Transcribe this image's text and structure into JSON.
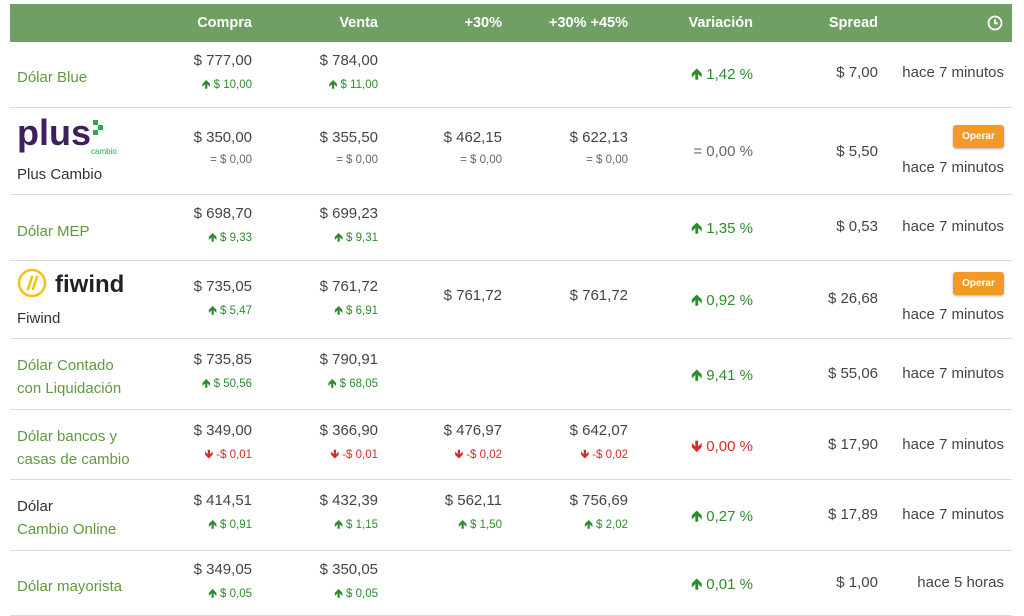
{
  "header": {
    "compra": "Compra",
    "venta": "Venta",
    "p30": "+30%",
    "p3045": "+30% +45%",
    "variacion": "Variación",
    "spread": "Spread",
    "clock_icon": "clock-icon"
  },
  "colors": {
    "header_bg": "#6f9f63",
    "up": "#2e8b2e",
    "down": "#d62b2b",
    "button": "#f39a26",
    "name_green": "#5f9a3c"
  },
  "rows": [
    {
      "name1": "Dólar Blue",
      "compra": "$ 777,00",
      "compra_d": "$ 10,00",
      "venta": "$ 784,00",
      "venta_d": "$ 11,00",
      "variacion": "1,42 %",
      "spread": "$ 7,00",
      "time": "hace 7 minutos"
    },
    {
      "logo_text": "plus",
      "logo_sub": "cambio",
      "name1": "Plus Cambio",
      "compra": "$ 350,00",
      "compra_d": "$ 0,00",
      "venta": "$ 355,50",
      "venta_d": "$ 0,00",
      "p30": "$ 462,15",
      "p30_d": "$ 0,00",
      "p3045": "$ 622,13",
      "p3045_d": "$ 0,00",
      "variacion": "0,00 %",
      "spread": "$ 5,50",
      "button": "Operar",
      "time": "hace 7 minutos"
    },
    {
      "name1": "Dólar MEP",
      "compra": "$ 698,70",
      "compra_d": "$ 9,33",
      "venta": "$ 699,23",
      "venta_d": "$ 9,31",
      "variacion": "1,35 %",
      "spread": "$ 0,53",
      "time": "hace 7 minutos"
    },
    {
      "logo_text": "fiwind",
      "name1": "Fiwind",
      "compra": "$ 735,05",
      "compra_d": "$ 5,47",
      "venta": "$ 761,72",
      "venta_d": "$ 6,91",
      "p30": "$ 761,72",
      "p3045": "$ 761,72",
      "variacion": "0,92 %",
      "spread": "$ 26,68",
      "button": "Operar",
      "time": "hace 7 minutos"
    },
    {
      "name1": "Dólar Contado",
      "name2": "con Liquidación",
      "compra": "$ 735,85",
      "compra_d": "$ 50,56",
      "venta": "$ 790,91",
      "venta_d": "$ 68,05",
      "variacion": "9,41 %",
      "spread": "$ 55,06",
      "time": "hace 7 minutos"
    },
    {
      "name1": "Dólar bancos y",
      "name2": "casas de cambio",
      "compra": "$ 349,00",
      "compra_d": "-$ 0,01",
      "venta": "$ 366,90",
      "venta_d": "-$ 0,01",
      "p30": "$ 476,97",
      "p30_d": "-$ 0,02",
      "p3045": "$ 642,07",
      "p3045_d": "-$ 0,02",
      "variacion": "0,00 %",
      "spread": "$ 17,90",
      "time": "hace 7 minutos"
    },
    {
      "name1": "Dólar",
      "name2": "Cambio Online",
      "compra": "$ 414,51",
      "compra_d": "$ 0,91",
      "venta": "$ 432,39",
      "venta_d": "$ 1,15",
      "p30": "$ 562,11",
      "p30_d": "$ 1,50",
      "p3045": "$ 756,69",
      "p3045_d": "$ 2,02",
      "variacion": "0,27 %",
      "spread": "$ 17,89",
      "time": "hace 7 minutos"
    },
    {
      "name1": "Dólar mayorista",
      "compra": "$ 349,05",
      "compra_d": "$ 0,05",
      "venta": "$ 350,05",
      "venta_d": "$ 0,05",
      "variacion": "0,01 %",
      "spread": "$ 1,00",
      "time": "hace 5 horas"
    }
  ]
}
